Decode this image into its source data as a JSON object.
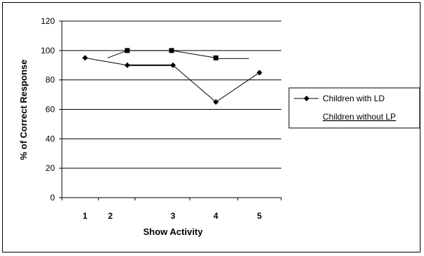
{
  "chart_data": {
    "type": "line",
    "title": "",
    "xlabel": "Show Activity",
    "ylabel": "% of Correct Response",
    "ylim": [
      0,
      120
    ],
    "yticks": [
      "0",
      "20",
      "40",
      "60",
      "80",
      "100",
      "120"
    ],
    "xtick_labels": [
      "1",
      "2",
      "3",
      "4",
      "5"
    ],
    "grid": true,
    "legend_position": "right",
    "series": [
      {
        "name": "Children with LD",
        "marker": "diamond",
        "x": [
          1,
          2,
          3,
          4,
          5
        ],
        "values": [
          95,
          90,
          90,
          65,
          85
        ]
      },
      {
        "name": "Children without LP",
        "marker": "square",
        "x": [
          1,
          2,
          3,
          4
        ],
        "values": [
          95,
          100,
          100,
          95
        ]
      }
    ]
  }
}
